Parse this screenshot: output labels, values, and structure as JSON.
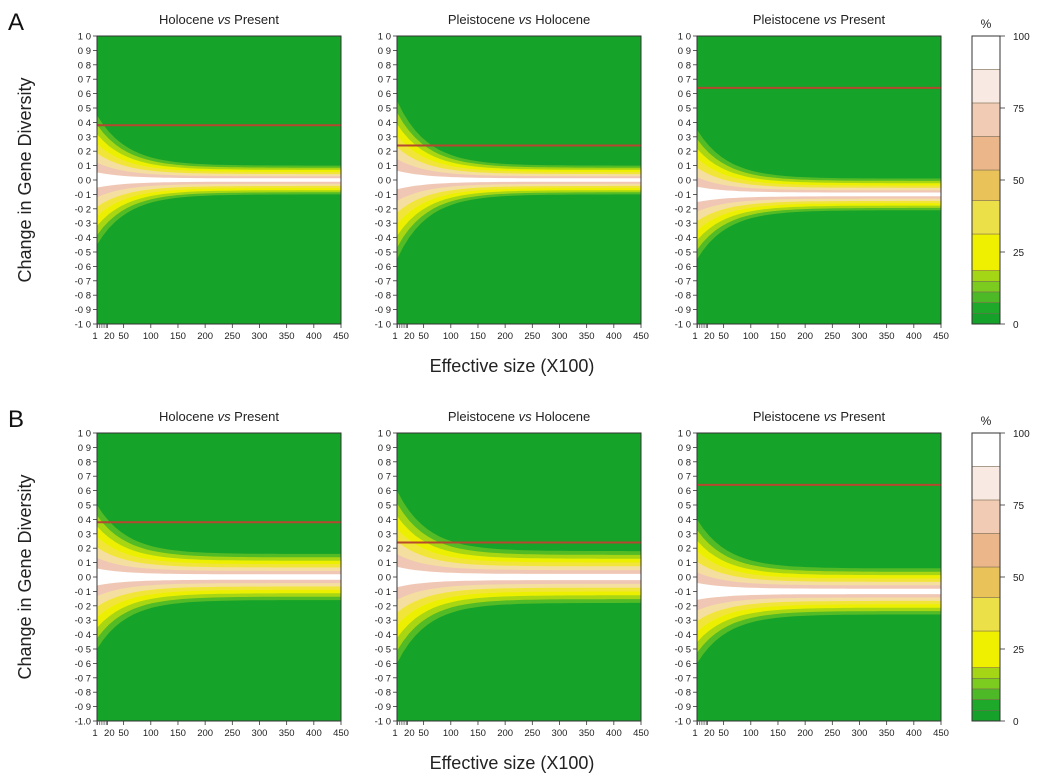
{
  "figure": {
    "row_ylabel": "Change in Gene Diversity",
    "xlabel": "Effective size (X100)",
    "colorbar": {
      "title": "%",
      "ticks": [
        "100",
        "75",
        "50",
        "25",
        "0"
      ],
      "bands": [
        "#ffffff",
        "#f8e9e2",
        "#f2cbb5",
        "#eab68a",
        "#e9c25a",
        "#ece048",
        "#eef000",
        "#a5d616",
        "#7ccc20",
        "#4db927",
        "#1fa92a",
        "#16a12a"
      ]
    },
    "colors": {
      "background": "#15a32a",
      "observed_line": "#b5482f"
    }
  },
  "chart_data": [
    {
      "panel_label": "A",
      "type": "heatmap",
      "subplots": [
        {
          "title_pre": "Holocene ",
          "title_vs": "vs",
          "title_post": " Present",
          "x_ticks": [
            1,
            20,
            50,
            100,
            150,
            200,
            250,
            300,
            350,
            400,
            450
          ],
          "x_tick_labels": [
            "1",
            "20",
            "50",
            "100",
            "150",
            "200",
            "250",
            "300",
            "350",
            "400",
            "450"
          ],
          "y_tick_labels": [
            "1 0",
            "0 9",
            "0 8",
            "0 7",
            "0 6",
            "0 5",
            "0 4",
            "0 3",
            "0 2",
            "0 1",
            "0 0",
            "-0 1",
            "-0 2",
            "-0 3",
            "-0 4",
            "-0 5",
            "-0 6",
            "-0 7",
            "-0 8",
            "-0 9",
            "-1 0"
          ],
          "xlim": [
            1,
            450
          ],
          "ylim": [
            -1.0,
            1.0
          ],
          "observed_change": 0.38,
          "center": 0.0,
          "band_halfwidth_large_ne": 0.1,
          "band_halfwidth_small_ne": 0.45
        },
        {
          "title_pre": "Pleistocene ",
          "title_vs": "vs",
          "title_post": " Holocene",
          "x_ticks": [
            1,
            20,
            50,
            100,
            150,
            200,
            250,
            300,
            350,
            400,
            450
          ],
          "x_tick_labels": [
            "1",
            "20",
            "50",
            "100",
            "150",
            "200",
            "250",
            "300",
            "350",
            "400",
            "450"
          ],
          "y_tick_labels": [
            "1 0",
            "0 9",
            "0 8",
            "0 7",
            "0 6",
            "0 5",
            "0 4",
            "0 3",
            "0 2",
            "0 1",
            "0 0",
            "-0 1",
            "-0 2",
            "-0 3",
            "-0 4",
            "-0 5",
            "-0 6",
            "-0 7",
            "-0 8",
            "-0 9",
            "-1 0"
          ],
          "xlim": [
            1,
            450
          ],
          "ylim": [
            -1.0,
            1.0
          ],
          "observed_change": 0.24,
          "center": 0.0,
          "band_halfwidth_large_ne": 0.1,
          "band_halfwidth_small_ne": 0.55
        },
        {
          "title_pre": "Pleistocene ",
          "title_vs": "vs",
          "title_post": " Present",
          "x_ticks": [
            1,
            20,
            50,
            100,
            150,
            200,
            250,
            300,
            350,
            400,
            450
          ],
          "x_tick_labels": [
            "1",
            "20",
            "50",
            "100",
            "150",
            "200",
            "250",
            "300",
            "350",
            "400",
            "450"
          ],
          "y_tick_labels": [
            "1 0",
            "0 9",
            "0 8",
            "0 7",
            "0 6",
            "0 5",
            "0 4",
            "0 3",
            "0 2",
            "0 1",
            "0 0",
            "-0 1",
            "-0 2",
            "-0 3",
            "-0 4",
            "-0 5",
            "-0 6",
            "-0 7",
            "-0 8",
            "-0 9",
            "-1 0"
          ],
          "xlim": [
            1,
            450
          ],
          "ylim": [
            -1.0,
            1.0
          ],
          "observed_change": 0.64,
          "center": -0.1,
          "band_halfwidth_large_ne": 0.11,
          "band_halfwidth_small_ne": 0.45
        }
      ]
    },
    {
      "panel_label": "B",
      "type": "heatmap",
      "subplots": [
        {
          "title_pre": "Holocene ",
          "title_vs": "vs",
          "title_post": " Present",
          "x_ticks": [
            1,
            20,
            50,
            100,
            150,
            200,
            250,
            300,
            350,
            400,
            450
          ],
          "x_tick_labels": [
            "1",
            "20",
            "50",
            "100",
            "150",
            "200",
            "250",
            "300",
            "350",
            "400",
            "450"
          ],
          "y_tick_labels": [
            "1 0",
            "0 9",
            "0 8",
            "0 7",
            "0 6",
            "0 5",
            "0 4",
            "0 3",
            "0 2",
            "0 1",
            "0 0",
            "-0 1",
            "-0 2",
            "-0 3",
            "-0 4",
            "-0 5",
            "-0 6",
            "-0 7",
            "-0 8",
            "-0 9",
            "-1.0"
          ],
          "xlim": [
            1,
            450
          ],
          "ylim": [
            -1.0,
            1.0
          ],
          "observed_change": 0.38,
          "center": 0.0,
          "band_halfwidth_large_ne": 0.16,
          "band_halfwidth_small_ne": 0.5
        },
        {
          "title_pre": "Pleistocene ",
          "title_vs": "vs",
          "title_post": " Holocene",
          "x_ticks": [
            1,
            20,
            50,
            100,
            150,
            200,
            250,
            300,
            350,
            400,
            450
          ],
          "x_tick_labels": [
            "1",
            "20",
            "50",
            "100",
            "150",
            "200",
            "250",
            "300",
            "350",
            "400",
            "450"
          ],
          "y_tick_labels": [
            "1 0",
            "0 9",
            "0 8",
            "0 7",
            "0 6",
            "0 5",
            "0 4",
            "0 3",
            "0 2",
            "0 1",
            "0 0",
            "-0 1",
            "-0 2",
            "-0 3",
            "-0 4",
            "-0 5",
            "-0 6",
            "-0 7",
            "-0 8",
            "-0 9",
            "-1 0"
          ],
          "xlim": [
            1,
            450
          ],
          "ylim": [
            -1.0,
            1.0
          ],
          "observed_change": 0.24,
          "center": 0.0,
          "band_halfwidth_large_ne": 0.18,
          "band_halfwidth_small_ne": 0.6
        },
        {
          "title_pre": "Pleistocene ",
          "title_vs": "vs",
          "title_post": " Present",
          "x_ticks": [
            1,
            20,
            50,
            100,
            150,
            200,
            250,
            300,
            350,
            400,
            450
          ],
          "x_tick_labels": [
            "1",
            "20",
            "50",
            "100",
            "150",
            "200",
            "250",
            "300",
            "350",
            "400",
            "450"
          ],
          "y_tick_labels": [
            "1 0",
            "0 9",
            "0 8",
            "0 7",
            "0 6",
            "0 5",
            "0 4",
            "0 3",
            "0 2",
            "0 1",
            "0 0",
            "-0 1",
            "-0 2",
            "-0 3",
            "-0 4",
            "-0 5",
            "-0 6",
            "-0 7",
            "-0 8",
            "-0 9",
            "-1 0"
          ],
          "xlim": [
            1,
            450
          ],
          "ylim": [
            -1.0,
            1.0
          ],
          "observed_change": 0.64,
          "center": -0.1,
          "band_halfwidth_large_ne": 0.16,
          "band_halfwidth_small_ne": 0.5
        }
      ]
    }
  ]
}
